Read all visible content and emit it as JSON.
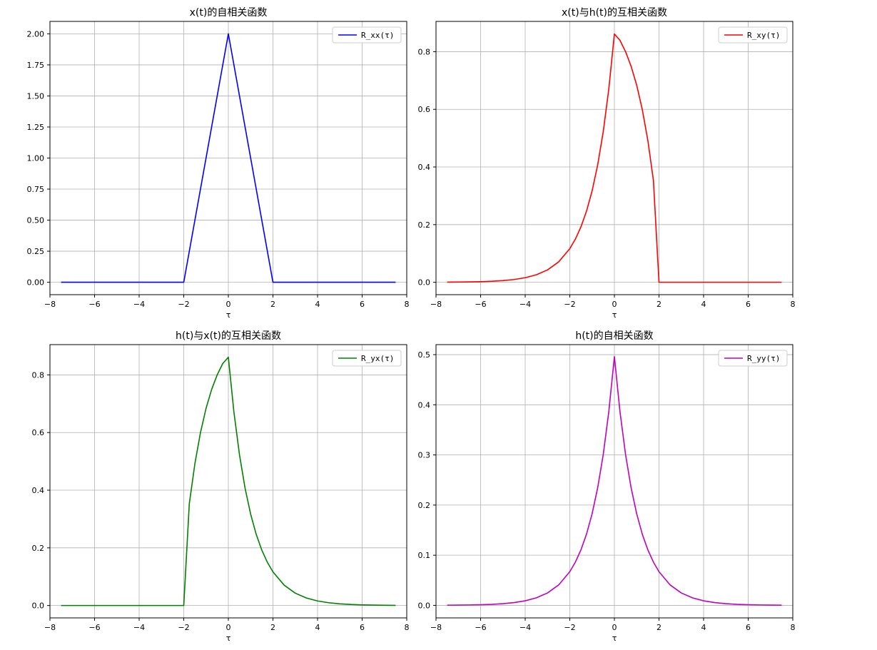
{
  "chart_data": [
    {
      "type": "line",
      "title": "x(t)的自相关函数",
      "xlabel": "τ",
      "ylabel": "",
      "xlim": [
        -8,
        8
      ],
      "ylim": [
        -0.1,
        2.1
      ],
      "xticks": [
        -8,
        -6,
        -4,
        -2,
        0,
        2,
        4,
        6,
        8
      ],
      "yticks": [
        0.0,
        0.25,
        0.5,
        0.75,
        1.0,
        1.25,
        1.5,
        1.75,
        2.0
      ],
      "ytick_labels": [
        "0.00",
        "0.25",
        "0.50",
        "0.75",
        "1.00",
        "1.25",
        "1.50",
        "1.75",
        "2.00"
      ],
      "grid": true,
      "legend": "top-right",
      "series": [
        {
          "name": "R_xx(τ)",
          "color": "#0000ff",
          "x": [
            -7.5,
            -2,
            0,
            2,
            7.5
          ],
          "y": [
            0,
            0,
            2.0,
            0,
            0
          ]
        }
      ]
    },
    {
      "type": "line",
      "title": "x(t)与h(t)的互相关函数",
      "xlabel": "τ",
      "ylabel": "",
      "xlim": [
        -8,
        8
      ],
      "ylim": [
        -0.043,
        0.905
      ],
      "xticks": [
        -8,
        -6,
        -4,
        -2,
        0,
        2,
        4,
        6,
        8
      ],
      "yticks": [
        0.0,
        0.2,
        0.4,
        0.6,
        0.8
      ],
      "ytick_labels": [
        "0.0",
        "0.2",
        "0.4",
        "0.6",
        "0.8"
      ],
      "grid": true,
      "legend": "top-right",
      "series": [
        {
          "name": "R_xy(τ)",
          "color": "#ff0000",
          "x": [
            -7.5,
            -7,
            -6.5,
            -6,
            -5.5,
            -5,
            -4.5,
            -4,
            -3.5,
            -3,
            -2.5,
            -2,
            -1.75,
            -1.5,
            -1.25,
            -1,
            -0.75,
            -0.5,
            -0.25,
            0,
            0.25,
            0.5,
            0.75,
            1,
            1.25,
            1.5,
            1.75,
            2,
            2.5,
            3,
            4,
            5,
            6,
            7,
            7.5
          ],
          "y": [
            0.0005,
            0.0008,
            0.0013,
            0.0021,
            0.0035,
            0.0058,
            0.0096,
            0.0158,
            0.026,
            0.0429,
            0.0707,
            0.1166,
            0.1497,
            0.1922,
            0.2468,
            0.3169,
            0.4069,
            0.5225,
            0.6709,
            0.8614,
            0.8394,
            0.8002,
            0.7492,
            0.6838,
            0.5999,
            0.4921,
            0.3537,
            0,
            0,
            0,
            0,
            0,
            0,
            0,
            0
          ]
        }
      ]
    },
    {
      "type": "line",
      "title": "h(t)与x(t)的互相关函数",
      "xlabel": "τ",
      "ylabel": "",
      "xlim": [
        -8,
        8
      ],
      "ylim": [
        -0.043,
        0.905
      ],
      "xticks": [
        -8,
        -6,
        -4,
        -2,
        0,
        2,
        4,
        6,
        8
      ],
      "yticks": [
        0.0,
        0.2,
        0.4,
        0.6,
        0.8
      ],
      "ytick_labels": [
        "0.0",
        "0.2",
        "0.4",
        "0.6",
        "0.8"
      ],
      "grid": true,
      "legend": "top-right",
      "series": [
        {
          "name": "R_yx(τ)",
          "color": "#008000",
          "x": [
            -7.5,
            -7,
            -6,
            -5,
            -4,
            -3,
            -2.5,
            -2,
            -1.75,
            -1.5,
            -1.25,
            -1,
            -0.75,
            -0.5,
            -0.25,
            0,
            0.25,
            0.5,
            0.75,
            1,
            1.25,
            1.5,
            1.75,
            2,
            2.5,
            3,
            3.5,
            4,
            4.5,
            5,
            5.5,
            6,
            6.5,
            7,
            7.5
          ],
          "y": [
            0,
            0,
            0,
            0,
            0,
            0,
            0,
            0,
            0.3537,
            0.4921,
            0.5999,
            0.6838,
            0.7492,
            0.8002,
            0.8394,
            0.8614,
            0.6709,
            0.5225,
            0.4069,
            0.3169,
            0.2468,
            0.1922,
            0.1497,
            0.1166,
            0.0707,
            0.0429,
            0.026,
            0.0158,
            0.0096,
            0.0058,
            0.0035,
            0.0021,
            0.0013,
            0.0008,
            0.0005
          ]
        }
      ]
    },
    {
      "type": "line",
      "title": "h(t)的自相关函数",
      "xlabel": "τ",
      "ylabel": "",
      "xlim": [
        -8,
        8
      ],
      "ylim": [
        -0.025,
        0.52
      ],
      "xticks": [
        -8,
        -6,
        -4,
        -2,
        0,
        2,
        4,
        6,
        8
      ],
      "yticks": [
        0.0,
        0.1,
        0.2,
        0.3,
        0.4,
        0.5
      ],
      "ytick_labels": [
        "0.0",
        "0.1",
        "0.2",
        "0.3",
        "0.4",
        "0.5"
      ],
      "grid": true,
      "legend": "top-right",
      "series": [
        {
          "name": "R_yy(τ)",
          "color": "#bf00bf",
          "x": [
            -7.5,
            -7,
            -6.5,
            -6,
            -5.5,
            -5,
            -4.5,
            -4,
            -3.5,
            -3,
            -2.5,
            -2,
            -1.75,
            -1.5,
            -1.25,
            -1,
            -0.75,
            -0.5,
            -0.25,
            0,
            0.25,
            0.5,
            0.75,
            1,
            1.25,
            1.5,
            1.75,
            2,
            2.5,
            3,
            3.5,
            4,
            4.5,
            5,
            5.5,
            6,
            6.5,
            7,
            7.5
          ],
          "y": [
            0.0003,
            0.0005,
            0.0008,
            0.0012,
            0.002,
            0.0034,
            0.0055,
            0.0091,
            0.015,
            0.0247,
            0.0407,
            0.0671,
            0.0862,
            0.1107,
            0.1421,
            0.1825,
            0.2344,
            0.3009,
            0.3864,
            0.4961,
            0.3864,
            0.3009,
            0.2344,
            0.1825,
            0.1421,
            0.1107,
            0.0862,
            0.0671,
            0.0407,
            0.0247,
            0.015,
            0.0091,
            0.0055,
            0.0034,
            0.002,
            0.0012,
            0.0008,
            0.0005,
            0.0003
          ]
        }
      ]
    }
  ]
}
